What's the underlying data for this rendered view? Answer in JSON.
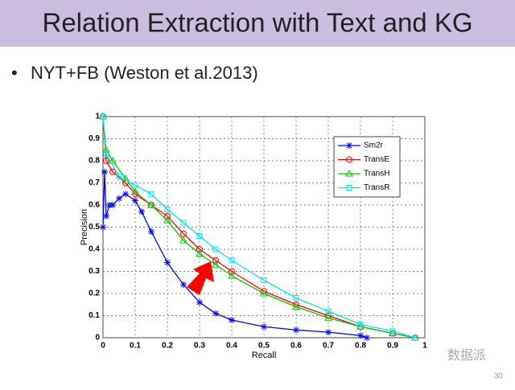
{
  "slide": {
    "title": "Relation Extraction with Text and KG",
    "bullet": "NYT+FB (Weston et al.2013)",
    "page_number": "30",
    "watermark": "数据派"
  },
  "chart_data": {
    "type": "line",
    "x_label": "Recall",
    "y_label": "Precision",
    "xlim": [
      0,
      1
    ],
    "ylim": [
      0,
      1
    ],
    "xticks": [
      0,
      0.1,
      0.2,
      0.3,
      0.4,
      0.5,
      0.6,
      0.7,
      0.8,
      0.9,
      1
    ],
    "yticks": [
      0,
      0.1,
      0.2,
      0.3,
      0.4,
      0.5,
      0.6,
      0.7,
      0.8,
      0.9,
      1
    ],
    "grid": true,
    "legend": "upper right",
    "series": [
      {
        "name": "Sm2r",
        "color": "#0000ff",
        "marker": "star",
        "x": [
          0,
          0.005,
          0.01,
          0.02,
          0.03,
          0.05,
          0.07,
          0.1,
          0.12,
          0.15,
          0.2,
          0.25,
          0.3,
          0.35,
          0.4,
          0.5,
          0.6,
          0.7,
          0.8,
          0.82
        ],
        "values": [
          0.5,
          0.75,
          0.55,
          0.6,
          0.6,
          0.63,
          0.65,
          0.62,
          0.57,
          0.48,
          0.34,
          0.24,
          0.16,
          0.11,
          0.08,
          0.05,
          0.035,
          0.025,
          0.01,
          0
        ]
      },
      {
        "name": "TransE",
        "color": "#ff0000",
        "marker": "circle",
        "x": [
          0,
          0.01,
          0.03,
          0.07,
          0.1,
          0.15,
          0.2,
          0.25,
          0.3,
          0.35,
          0.4,
          0.5,
          0.6,
          0.7,
          0.8,
          0.9,
          0.97
        ],
        "values": [
          1,
          0.8,
          0.75,
          0.7,
          0.65,
          0.6,
          0.55,
          0.47,
          0.4,
          0.35,
          0.3,
          0.21,
          0.15,
          0.1,
          0.05,
          0.02,
          0
        ]
      },
      {
        "name": "TransH",
        "color": "#00cc00",
        "marker": "triangle",
        "x": [
          0,
          0.01,
          0.03,
          0.07,
          0.1,
          0.15,
          0.2,
          0.25,
          0.3,
          0.35,
          0.4,
          0.5,
          0.6,
          0.7,
          0.8,
          0.9,
          0.97
        ],
        "values": [
          1,
          0.85,
          0.8,
          0.72,
          0.66,
          0.6,
          0.53,
          0.44,
          0.38,
          0.33,
          0.28,
          0.2,
          0.14,
          0.09,
          0.05,
          0.02,
          0
        ]
      },
      {
        "name": "TransR",
        "color": "#00e5ee",
        "marker": "square",
        "x": [
          0,
          0.01,
          0.05,
          0.1,
          0.15,
          0.2,
          0.25,
          0.3,
          0.35,
          0.4,
          0.5,
          0.6,
          0.7,
          0.8,
          0.9,
          0.97
        ],
        "values": [
          1,
          0.83,
          0.73,
          0.69,
          0.65,
          0.58,
          0.52,
          0.46,
          0.4,
          0.35,
          0.26,
          0.18,
          0.12,
          0.06,
          0.03,
          0
        ]
      }
    ]
  }
}
